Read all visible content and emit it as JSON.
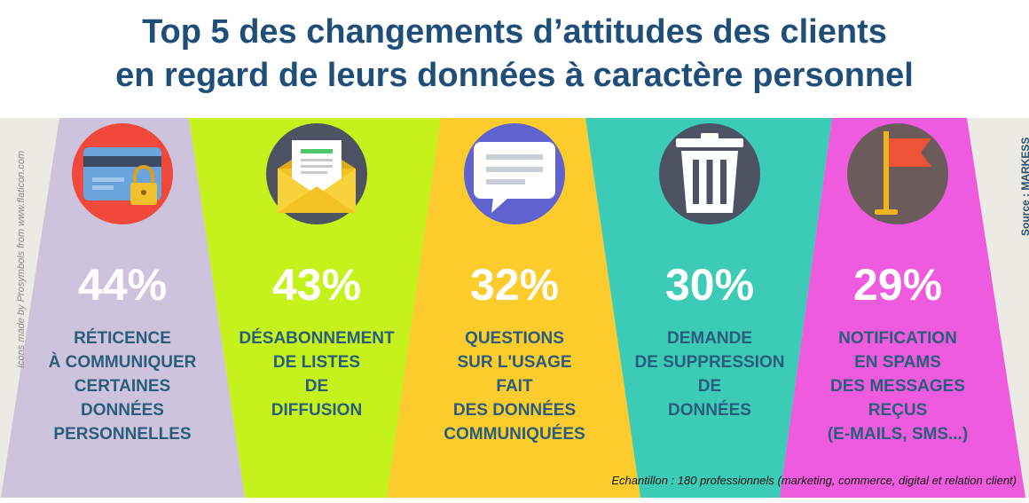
{
  "title": {
    "line1": "Top 5 des changements d’attitudes des clients",
    "line2": "en regard de leurs données à caractère personnel"
  },
  "credit": "Icons made by Prosymbols from www.flaticon.com",
  "source": "Source : MARKESS",
  "sample": "Echantillon : 180 professionnels (marketing, commerce, digital et relation client)",
  "chart_data": {
    "type": "bar",
    "title": "Top 5 des changements d’attitudes des clients en regard de leurs données à caractère personnel",
    "unit": "%",
    "categories": [
      "RÉTICENCE À COMMUNIQUER CERTAINES DONNÉES PERSONNELLES",
      "DÉSABONNEMENT DE LISTES DE DIFFUSION",
      "QUESTIONS SUR L'USAGE FAIT DES DONNÉES COMMUNIQUÉES",
      "DEMANDE DE SUPPRESSION DE DONNÉES",
      "NOTIFICATION EN SPAMS DES MESSAGES REÇUS (E-MAILS, SMS...)"
    ],
    "values": [
      44,
      43,
      32,
      30,
      29
    ],
    "value_labels": [
      "44%",
      "43%",
      "32%",
      "30%",
      "29%"
    ],
    "label_lines": [
      [
        "RÉTICENCE",
        "À COMMUNIQUER",
        "CERTAINES",
        "DONNÉES",
        "PERSONNELLES"
      ],
      [
        "DÉSABONNEMENT",
        "DE LISTES",
        "DE",
        "DIFFUSION"
      ],
      [
        "QUESTIONS",
        "SUR L'USAGE",
        "FAIT",
        "DES DONNÉES",
        "COMMUNIQUÉES"
      ],
      [
        "DEMANDE",
        "DE SUPPRESSION",
        "DE",
        "DONNÉES"
      ],
      [
        "NOTIFICATION",
        "EN SPAMS",
        "DES MESSAGES",
        "REÇUS",
        "(E-MAILS, SMS...)"
      ]
    ],
    "icons": [
      "credit-card-lock-icon",
      "envelope-letter-icon",
      "speech-bubble-icon",
      "trash-can-icon",
      "red-flag-icon"
    ],
    "colors": [
      "#cec3dd",
      "#c5f21c",
      "#fbcc2c",
      "#3bcbb7",
      "#ef5bdf"
    ],
    "icon_circle_colors": [
      "#f0483a",
      "#4d5363",
      "#5f62cf",
      "#4d5363",
      "#6c5b5b"
    ]
  }
}
